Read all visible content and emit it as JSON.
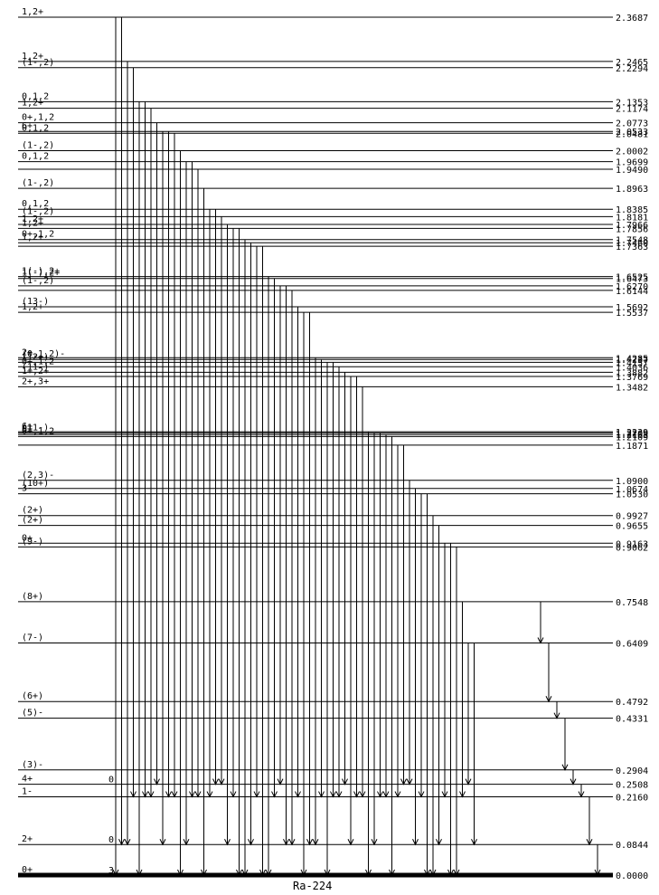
{
  "nucleus": "Ra-224",
  "levels": [
    {
      "energy": "2.3687",
      "spin": "1,2+"
    },
    {
      "energy": "2.2465",
      "spin": "1,2+"
    },
    {
      "energy": "2.2294",
      "spin": "(1-,2)"
    },
    {
      "energy": "2.1353",
      "spin": "0,1,2"
    },
    {
      "energy": "2.1174",
      "spin": "1,2+"
    },
    {
      "energy": "2.0773",
      "spin": "0+,1,2"
    },
    {
      "energy": "2.0533",
      "spin": "6+"
    },
    {
      "energy": "2.0481",
      "spin": "0,1,2"
    },
    {
      "energy": "2.0002",
      "spin": "(1-,2)"
    },
    {
      "energy": "1.9699",
      "spin": "0,1,2"
    },
    {
      "energy": "1.9490",
      "spin": ""
    },
    {
      "energy": "1.8963",
      "spin": "(1-,2)"
    },
    {
      "energy": "1.8385",
      "spin": "0,1,2"
    },
    {
      "energy": "1.8181",
      "spin": "(1-,2)"
    },
    {
      "energy": "1.7966",
      "spin": "1,2+"
    },
    {
      "energy": "1.7856",
      "spin": "1,2+"
    },
    {
      "energy": "1.7548",
      "spin": "0+,1,2"
    },
    {
      "energy": "1.7460",
      "spin": "1,2+"
    },
    {
      "energy": "1.7363",
      "spin": ""
    },
    {
      "energy": "1.6525",
      "spin": "1(-),2+"
    },
    {
      "energy": "1.6473",
      "spin": "1(-),2+"
    },
    {
      "energy": "1.6270",
      "spin": "(1-,2)"
    },
    {
      "energy": "1.6144",
      "spin": ""
    },
    {
      "energy": "1.5692",
      "spin": "(13-)"
    },
    {
      "energy": "1.5537",
      "spin": "1,2+"
    },
    {
      "energy": "1.4285",
      "spin": "2+"
    },
    {
      "energy": "1.4237",
      "spin": "(0,1,2)-"
    },
    {
      "energy": "1.4157",
      "spin": "(12+)"
    },
    {
      "energy": "1.4036",
      "spin": "0+,1,2"
    },
    {
      "energy": "1.3882",
      "spin": "(11-)"
    },
    {
      "energy": "1.3769",
      "spin": "1+,2+"
    },
    {
      "energy": "1.3482",
      "spin": "2+,3+"
    },
    {
      "energy": "1.2239",
      "spin": "6+"
    },
    {
      "energy": "1.2209",
      "spin": "(11-)"
    },
    {
      "energy": "1.2163",
      "spin": "0+"
    },
    {
      "energy": "1.2109",
      "spin": "0+,1,2"
    },
    {
      "energy": "1.1871",
      "spin": ""
    },
    {
      "energy": "1.0900",
      "spin": "(2,3)-"
    },
    {
      "energy": "1.0674",
      "spin": "(10+)"
    },
    {
      "energy": "1.0530",
      "spin": "3-"
    },
    {
      "energy": "0.9927",
      "spin": "(2+)"
    },
    {
      "energy": "0.9655",
      "spin": "(2+)"
    },
    {
      "energy": "0.9163",
      "spin": "0+"
    },
    {
      "energy": "0.9062",
      "spin": "(9-)"
    },
    {
      "energy": "0.7548",
      "spin": "(8+)"
    },
    {
      "energy": "0.6409",
      "spin": "(7-)"
    },
    {
      "energy": "0.4792",
      "spin": "(6+)"
    },
    {
      "energy": "0.4331",
      "spin": "(5)-"
    },
    {
      "energy": "0.2904",
      "spin": "(3)-"
    },
    {
      "energy": "0.2508",
      "spin": "4+"
    },
    {
      "energy": "0.2160",
      "spin": "1-"
    },
    {
      "energy": "0.0844",
      "spin": "2+"
    },
    {
      "energy": "0.0000",
      "spin": "0+"
    }
  ],
  "level_markers": [
    {
      "energy": "0.2508",
      "text": "0"
    },
    {
      "energy": "0.0844",
      "text": "0"
    },
    {
      "energy": "0.0000",
      "text": "3"
    }
  ]
}
